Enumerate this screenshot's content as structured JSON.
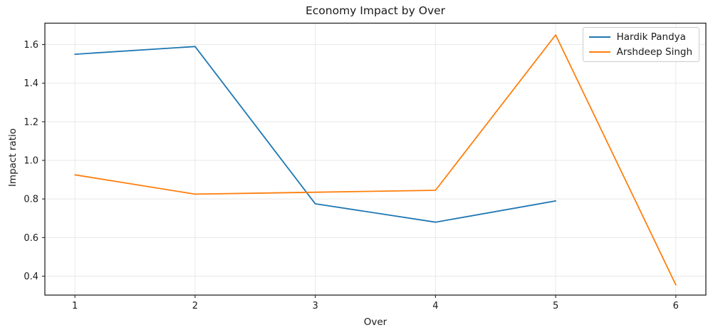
{
  "chart_data": {
    "type": "line",
    "title": "Economy Impact by Over",
    "xlabel": "Over",
    "ylabel": "Impact ratio",
    "xlim": [
      0.75,
      6.25
    ],
    "ylim": [
      0.302,
      1.711
    ],
    "x_ticks": [
      1,
      2,
      3,
      4,
      5,
      6
    ],
    "x_tick_labels": [
      "1",
      "2",
      "3",
      "4",
      "5",
      "6"
    ],
    "y_ticks": [
      0.4,
      0.6,
      0.8,
      1.0,
      1.2,
      1.4,
      1.6
    ],
    "y_tick_labels": [
      "0.4",
      "0.6",
      "0.8",
      "1.0",
      "1.2",
      "1.4",
      "1.6"
    ],
    "grid": true,
    "legend_position": "upper right",
    "series": [
      {
        "name": "Hardik Pandya",
        "color": "#1f77b4",
        "x": [
          1,
          2,
          3,
          4,
          5
        ],
        "y": [
          1.55,
          1.59,
          0.775,
          0.68,
          0.79
        ]
      },
      {
        "name": "Arshdeep Singh",
        "color": "#ff7f0e",
        "x": [
          1,
          2,
          3,
          4,
          5,
          6
        ],
        "y": [
          0.925,
          0.825,
          0.835,
          0.845,
          1.65,
          0.355
        ]
      }
    ],
    "colors": {
      "grid": "#e8e8e8",
      "spine": "#262626",
      "background": "#ffffff"
    }
  }
}
